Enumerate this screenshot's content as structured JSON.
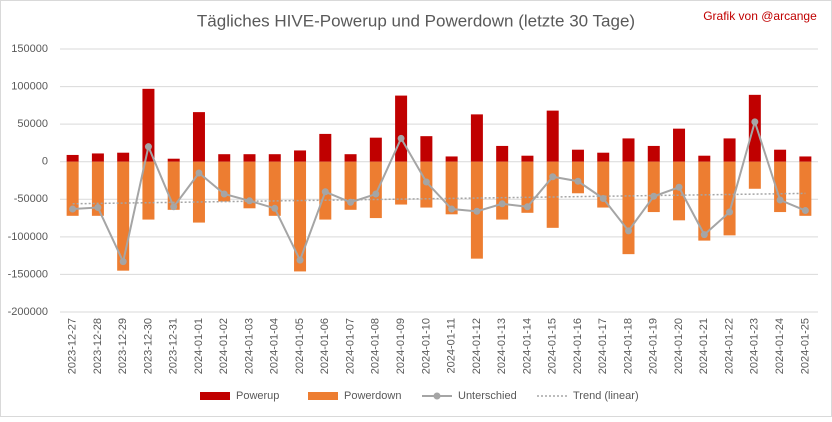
{
  "chart_data": {
    "type": "bar",
    "title": "Tägliches HIVE-Powerup und Powerdown (letzte 30 Tage)",
    "credit": "Grafik von @arcange",
    "categories": [
      "2023-12-27",
      "2023-12-28",
      "2023-12-29",
      "2023-12-30",
      "2023-12-31",
      "2024-01-01",
      "2024-01-02",
      "2024-01-03",
      "2024-01-04",
      "2024-01-05",
      "2024-01-06",
      "2024-01-07",
      "2024-01-08",
      "2024-01-09",
      "2024-01-10",
      "2024-01-11",
      "2024-01-12",
      "2024-01-13",
      "2024-01-14",
      "2024-01-15",
      "2024-01-16",
      "2024-01-17",
      "2024-01-18",
      "2024-01-19",
      "2024-01-20",
      "2024-01-21",
      "2024-01-22",
      "2024-01-23",
      "2024-01-24",
      "2024-01-25"
    ],
    "series": [
      {
        "name": "Powerup",
        "color": "#c00000",
        "kind": "bar",
        "values": [
          9000,
          11000,
          12000,
          97000,
          4000,
          66000,
          10000,
          10000,
          10000,
          15000,
          37000,
          10000,
          32000,
          88000,
          34000,
          7000,
          63000,
          21000,
          8000,
          68000,
          16000,
          12000,
          31000,
          21000,
          44000,
          8000,
          31000,
          89000,
          16000,
          7000
        ]
      },
      {
        "name": "Powerdown",
        "color": "#ed7d31",
        "kind": "bar",
        "values": [
          -72000,
          -72000,
          -145000,
          -77000,
          -64000,
          -81000,
          -53000,
          -62000,
          -72000,
          -146000,
          -77000,
          -64000,
          -75000,
          -57000,
          -61000,
          -70000,
          -129000,
          -77000,
          -68000,
          -88000,
          -42000,
          -61000,
          -123000,
          -67000,
          -78000,
          -105000,
          -98000,
          -36000,
          -67000,
          -72000
        ]
      },
      {
        "name": "Unterschied",
        "color": "#a5a5a5",
        "kind": "line",
        "values": [
          -63000,
          -61000,
          -133000,
          20000,
          -60000,
          -15000,
          -43000,
          -52000,
          -62000,
          -131000,
          -40000,
          -54000,
          -43000,
          31000,
          -27000,
          -63000,
          -66000,
          -56000,
          -60000,
          -20000,
          -26000,
          -49000,
          -92000,
          -46000,
          -34000,
          -97000,
          -67000,
          53000,
          -51000,
          -65000
        ]
      }
    ],
    "trend_name": "Trend (linear)",
    "trend_color": "#a5a5a5",
    "ylim": [
      -200000,
      150000
    ],
    "yticks": [
      -200000,
      -150000,
      -100000,
      -50000,
      0,
      50000,
      100000,
      150000
    ],
    "grid": true
  }
}
